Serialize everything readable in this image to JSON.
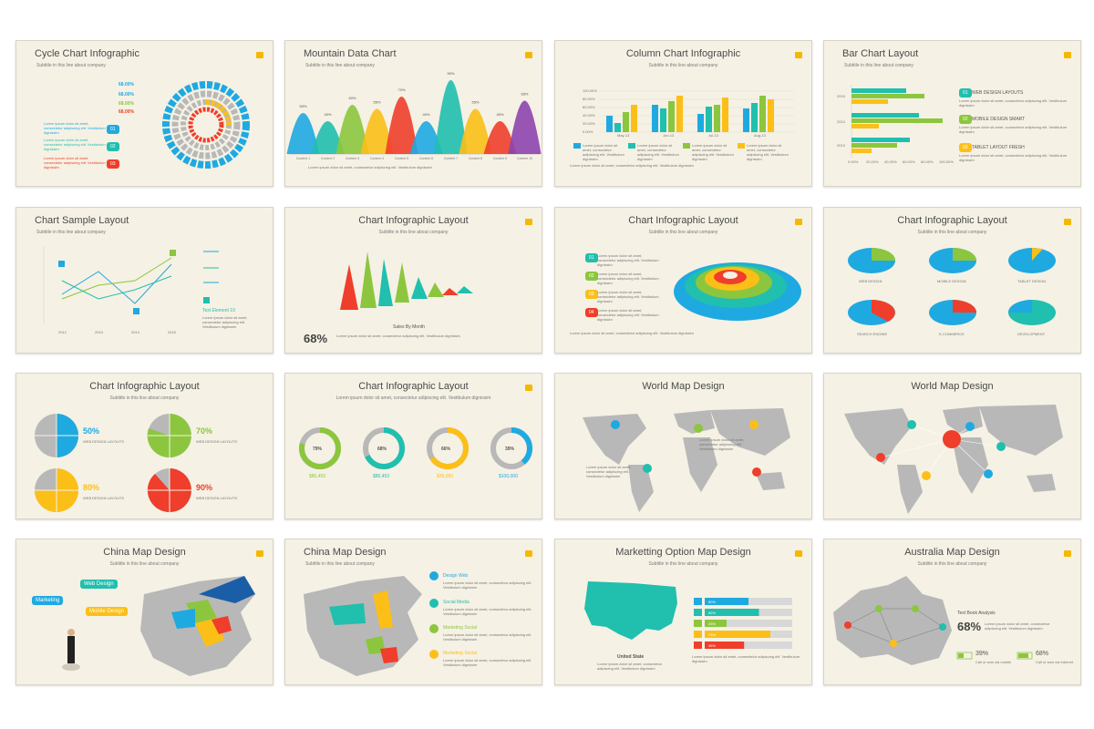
{
  "colors": {
    "blue": "#1fa9e1",
    "teal": "#20bfae",
    "green": "#8cc63e",
    "yellow": "#fbbf18",
    "red": "#ef3e2b",
    "purple": "#8e44ad",
    "grey": "#b8b8b8",
    "background": "#f5f1e4"
  },
  "subtitle": "Subtitle in this line about company",
  "lorem": "Lorem ipsum dolor sit amet, consectetur adipiscing elit. Vestibulum dignissim",
  "slides": [
    {
      "title": "Cycle Chart Infographic",
      "rings": [
        "68.00%",
        "68.00%",
        "68.00%",
        "68.00%"
      ],
      "items": [
        "01",
        "02",
        "03"
      ]
    },
    {
      "title": "Mountain Data Chart",
      "peaks": [
        "50%",
        "40%",
        "60%",
        "55%",
        "70%",
        "40%",
        "90%",
        "55%",
        "40%",
        "65%"
      ],
      "contents": [
        "Content 1",
        "Content 2",
        "Content 3",
        "Content 4",
        "Content 5",
        "Content 6",
        "Content 7",
        "Content 8",
        "Content 9",
        "Content 10"
      ]
    },
    {
      "title": "Column Chart Infographic",
      "yticks": [
        "100.00%",
        "80.00%",
        "60.00%",
        "40.00%",
        "20.00%",
        "0.00%"
      ],
      "months": [
        "May-13",
        "Jun-13",
        "Jul-13",
        "Aug-13"
      ]
    },
    {
      "title": "Bar Chart Layout",
      "years": [
        "2015",
        "2014",
        "2013"
      ],
      "xticks": [
        "0.00%",
        "20.00%",
        "40.00%",
        "60.00%",
        "80.00%",
        "100.00%"
      ],
      "items": [
        {
          "num": "01",
          "label": "WEB DESIGN LAYOUTS"
        },
        {
          "num": "02",
          "label": "MOBILE DESIGN SMART"
        },
        {
          "num": "03",
          "label": "TABLET LAYOUT FRESH"
        }
      ]
    },
    {
      "title": "Chart Sample Layout",
      "years": [
        "2012",
        "2013",
        "2014",
        "2015"
      ],
      "element": "Text Element 10"
    },
    {
      "title": "Chart Infographic Layout",
      "caption": "Sales By Month",
      "big": "68%"
    },
    {
      "title": "Chart Infographic Layout",
      "steps": [
        "01",
        "02",
        "03",
        "04"
      ]
    },
    {
      "title": "Chart Infographic Layout",
      "pies": [
        "WEB DESIGN",
        "MOBILE DESIGN",
        "TABLET DESIGN",
        "SEARCH ENGINE",
        "E-COMMERCE",
        "DEVELOPMENT"
      ]
    },
    {
      "title": "Chart Infographic Layout",
      "items": [
        {
          "pct": "50%",
          "label": "WEB DESIGN LAYOUTS"
        },
        {
          "pct": "70%",
          "label": "WEB DESIGN LAYOUTS"
        },
        {
          "pct": "80%",
          "label": "WEB DESIGN LAYOUTS"
        },
        {
          "pct": "90%",
          "label": "WEB DESIGN LAYOUTS"
        }
      ]
    },
    {
      "title": "Chart Infographic Layout",
      "donuts": [
        {
          "pct": "79%",
          "value": "$86,453",
          "fill": 0.79
        },
        {
          "pct": "68%",
          "value": "$86,453",
          "fill": 0.68
        },
        {
          "pct": "66%",
          "value": "$39,000",
          "fill": 0.66
        },
        {
          "pct": "39%",
          "value": "$100,000",
          "fill": 0.39
        }
      ]
    },
    {
      "title": "World Map Design",
      "pins": [
        "01",
        "02",
        "03",
        "04",
        "05"
      ]
    },
    {
      "title": "World Map Design"
    },
    {
      "title": "China Map Design",
      "bubbles": [
        "Marketing",
        "Web Design",
        "Mobile Design"
      ]
    },
    {
      "title": "China Map Design",
      "list": [
        "Design Web",
        "Social Media",
        "Marketing Social",
        "Marketing Social"
      ]
    },
    {
      "title": "Marketting Option Map Design",
      "country": "United State",
      "bars": [
        {
          "pct": "50%",
          "fill": 0.5
        },
        {
          "pct": "62%",
          "fill": 0.62
        },
        {
          "pct": "25%",
          "fill": 0.25
        },
        {
          "pct": "75%",
          "fill": 0.75
        },
        {
          "pct": "45%",
          "fill": 0.45
        }
      ]
    },
    {
      "title": "Australia Map Design",
      "heading": "Text Book Analysis",
      "big": "68%",
      "stats": [
        {
          "pct": "39%",
          "label": "Call or sms via mobile"
        },
        {
          "pct": "68%",
          "label": "Call or sms via Internet"
        }
      ]
    }
  ]
}
